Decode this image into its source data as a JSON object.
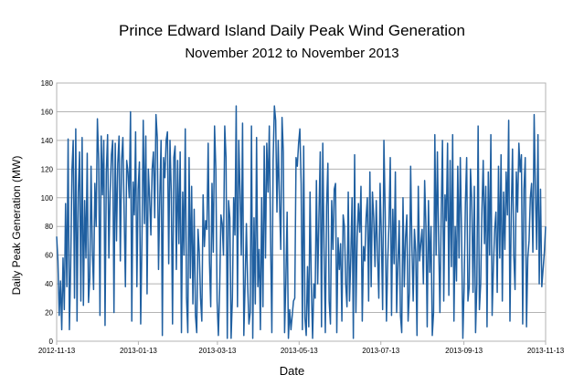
{
  "chart_data": {
    "type": "line",
    "title": "Prince Edward Island Daily Peak Wind Generation",
    "subtitle": "November 2012 to November 2013",
    "xlabel": "Date",
    "ylabel": "Daily Peak Generation (MW)",
    "ylim": [
      0,
      180
    ],
    "y_ticks": [
      0,
      20,
      40,
      60,
      80,
      100,
      120,
      140,
      160,
      180
    ],
    "x_ticks": [
      "2012-11-13",
      "2013-01-13",
      "2013-03-13",
      "2013-05-13",
      "2013-07-13",
      "2013-09-13",
      "2013-11-13"
    ],
    "x_start": "2012-11-13",
    "x_end": "2013-11-13",
    "grid": true,
    "line_color": "#1f5fa0",
    "series": [
      {
        "values": [
          73,
          56,
          18,
          42,
          8,
          58,
          22,
          96,
          38,
          141,
          8,
          52,
          119,
          140,
          30,
          148,
          14,
          104,
          132,
          28,
          142,
          25,
          98,
          58,
          131,
          27,
          44,
          122,
          63,
          36,
          110,
          80,
          155,
          126,
          18,
          143,
          102,
          140,
          11,
          118,
          144,
          58,
          104,
          130,
          140,
          20,
          138,
          70,
          124,
          143,
          56,
          126,
          142,
          90,
          38,
          126,
          118,
          100,
          160,
          14,
          111,
          88,
          146,
          38,
          106,
          125,
          12,
          72,
          154,
          82,
          143,
          33,
          120,
          100,
          74,
          120,
          132,
          86,
          158,
          142,
          50,
          100,
          140,
          4,
          128,
          114,
          140,
          146,
          54,
          140,
          104,
          12,
          128,
          136,
          50,
          126,
          68,
          132,
          6,
          104,
          60,
          148,
          30,
          6,
          128,
          44,
          108,
          26,
          92,
          18,
          6,
          78,
          62,
          30,
          14,
          102,
          66,
          84,
          78,
          138,
          56,
          24,
          110,
          62,
          150,
          120,
          28,
          4,
          36,
          88,
          82,
          60,
          150,
          128,
          2,
          98,
          86,
          2,
          30,
          100,
          74,
          164,
          24,
          140,
          105,
          60,
          152,
          4,
          40,
          82,
          40,
          12,
          20,
          150,
          2,
          86,
          26,
          142,
          38,
          64,
          8,
          100,
          24,
          136,
          58,
          138,
          104,
          150,
          72,
          6,
          126,
          164,
          154,
          90,
          140,
          98,
          64,
          156,
          132,
          6,
          42,
          90,
          2,
          22,
          8,
          18,
          28,
          30,
          128,
          122,
          138,
          148,
          110,
          8,
          136,
          16,
          4,
          52,
          10,
          104,
          38,
          2,
          40,
          30,
          112,
          40,
          88,
          132,
          10,
          138,
          64,
          6,
          94,
          124,
          28,
          12,
          98,
          64,
          106,
          110,
          6,
          72,
          50,
          68,
          14,
          88,
          80,
          40,
          24,
          104,
          28,
          58,
          100,
          2,
          130,
          20,
          72,
          96,
          76,
          108,
          14,
          66,
          56,
          86,
          100,
          28,
          118,
          38,
          104,
          86,
          52,
          98,
          60,
          30,
          110,
          74,
          22,
          140,
          90,
          14,
          56,
          82,
          128,
          18,
          92,
          54,
          118,
          20,
          54,
          84,
          18,
          6,
          100,
          38,
          72,
          88,
          14,
          34,
          122,
          66,
          28,
          78,
          62,
          4,
          108,
          56,
          68,
          78,
          40,
          112,
          80,
          10,
          98,
          48,
          80,
          4,
          20,
          144,
          60,
          132,
          70,
          20,
          88,
          140,
          28,
          102,
          84,
          138,
          32,
          126,
          52,
          144,
          14,
          80,
          42,
          122,
          58,
          128,
          74,
          2,
          38,
          96,
          128,
          28,
          38,
          120,
          98,
          34,
          108,
          6,
          40,
          150,
          22,
          40,
          92,
          126,
          68,
          108,
          10,
          118,
          60,
          144,
          18,
          52,
          78,
          90,
          34,
          122,
          58,
          130,
          28,
          104,
          64,
          118,
          88,
          154,
          14,
          88,
          134,
          60,
          36,
          118,
          90,
          138,
          118,
          130,
          12,
          106,
          128,
          10,
          58,
          70,
          100,
          110,
          62,
          158,
          104,
          64,
          144,
          40,
          106,
          38,
          50,
          62,
          80
        ]
      }
    ]
  }
}
